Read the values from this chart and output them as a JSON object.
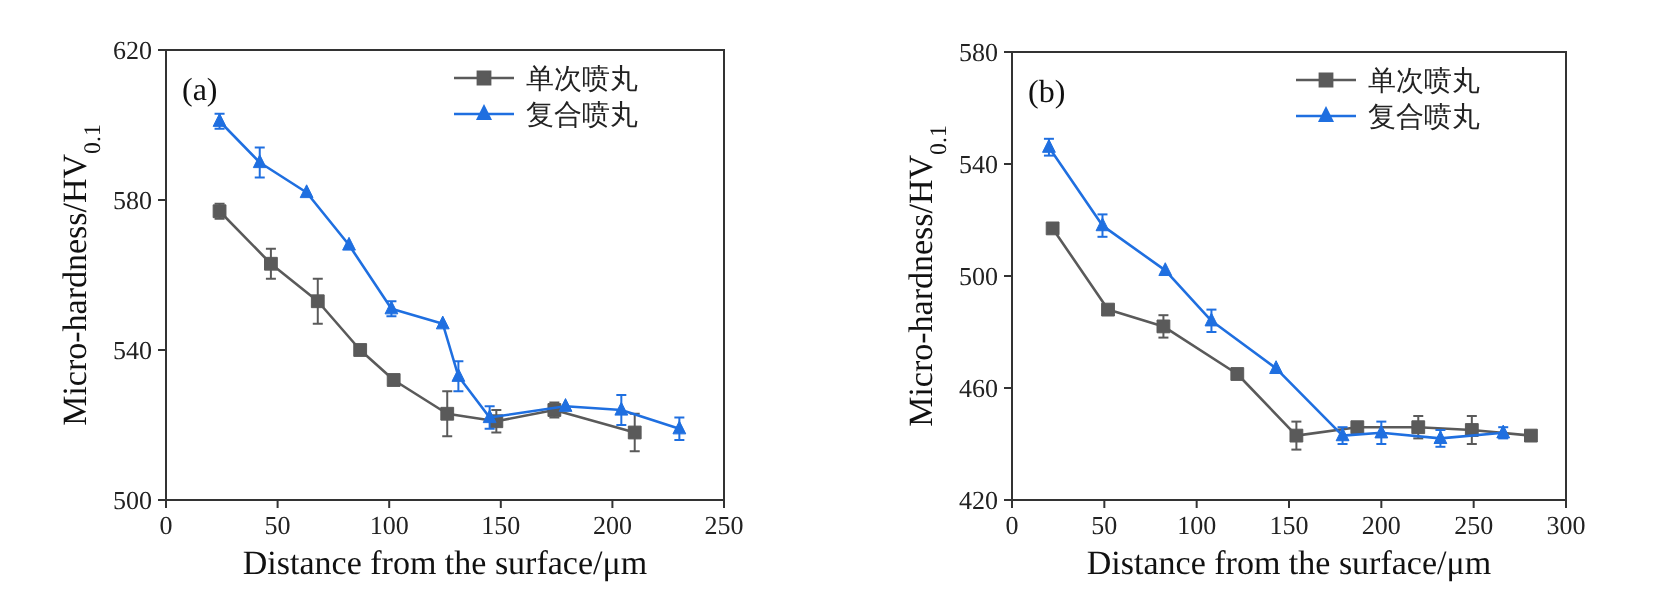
{
  "chart_data": [
    {
      "type": "line",
      "xlabel": "Distance from the surface/μm",
      "ylabel": "Micro-hardness/HV$_{0.1}$",
      "annotations": [
        "(a)"
      ],
      "xlim": [
        0,
        250
      ],
      "xticks": [
        0,
        50,
        100,
        150,
        200,
        250
      ],
      "ylim": [
        500,
        620
      ],
      "yticks": [
        500,
        540,
        580,
        620
      ],
      "legend": "top right",
      "series": [
        {
          "name": "单次喷丸",
          "color": "#5a5a5a",
          "marker": "square",
          "x": [
            24,
            47,
            68,
            87,
            102,
            126,
            148,
            174,
            210
          ],
          "values": [
            577,
            563,
            553,
            540,
            532,
            523,
            521,
            524,
            518
          ],
          "errors": [
            2,
            4,
            6,
            null,
            null,
            6,
            3,
            2,
            5
          ]
        },
        {
          "name": "复合喷丸",
          "color": "#1f6fe0",
          "marker": "triangle",
          "x": [
            24,
            42,
            63,
            82,
            101,
            124,
            131,
            145,
            179,
            204,
            230
          ],
          "values": [
            601,
            590,
            582,
            568,
            551,
            547,
            533,
            522,
            525,
            524,
            519
          ],
          "errors": [
            2,
            4,
            null,
            null,
            2,
            null,
            4,
            3,
            null,
            4,
            3
          ]
        }
      ]
    },
    {
      "type": "line",
      "xlabel": "Distance from the surface/μm",
      "ylabel": "Micro-hardness/HV$_{0.1}$",
      "annotations": [
        "(b)"
      ],
      "xlim": [
        0,
        300
      ],
      "xticks": [
        0,
        50,
        100,
        150,
        200,
        250,
        300
      ],
      "ylim": [
        420,
        580
      ],
      "yticks": [
        420,
        460,
        500,
        540,
        580
      ],
      "legend": "top right",
      "series": [
        {
          "name": "单次喷丸",
          "color": "#5a5a5a",
          "marker": "square",
          "x": [
            22,
            52,
            82,
            122,
            154,
            187,
            220,
            249,
            281
          ],
          "values": [
            517,
            488,
            482,
            465,
            443,
            446,
            446,
            445,
            443
          ],
          "errors": [
            null,
            null,
            4,
            null,
            5,
            null,
            4,
            5,
            null
          ]
        },
        {
          "name": "复合喷丸",
          "color": "#1f6fe0",
          "marker": "triangle",
          "x": [
            20,
            49,
            83,
            108,
            143,
            179,
            200,
            232,
            266
          ],
          "values": [
            546,
            518,
            502,
            484,
            467,
            443,
            444,
            442,
            444
          ],
          "errors": [
            3,
            4,
            null,
            4,
            null,
            3,
            4,
            3,
            2
          ]
        }
      ]
    }
  ]
}
